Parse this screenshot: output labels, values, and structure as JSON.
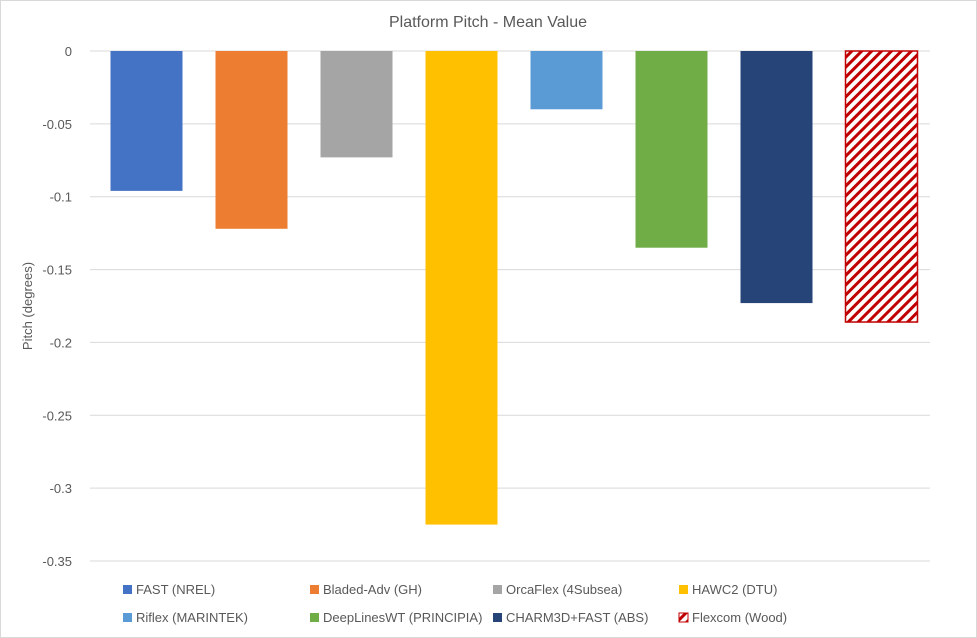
{
  "chart_data": {
    "type": "bar",
    "title": "Platform Pitch - Mean Value",
    "xlabel": "",
    "ylabel": "Pitch (degrees)",
    "ylim": [
      -0.35,
      0
    ],
    "yticks": [
      0,
      -0.05,
      -0.1,
      -0.15,
      -0.2,
      -0.25,
      -0.3,
      -0.35
    ],
    "ytick_labels": [
      "0",
      "-0.05",
      "-0.1",
      "-0.15",
      "-0.2",
      "-0.25",
      "-0.3",
      "-0.35"
    ],
    "grid": true,
    "legend_position": "bottom",
    "series": [
      {
        "name": "FAST (NREL)",
        "value": -0.096,
        "color": "#4472c4",
        "pattern": "solid"
      },
      {
        "name": "Bladed-Adv (GH)",
        "value": -0.122,
        "color": "#ed7d31",
        "pattern": "solid"
      },
      {
        "name": "OrcaFlex (4Subsea)",
        "value": -0.073,
        "color": "#a5a5a5",
        "pattern": "solid"
      },
      {
        "name": "HAWC2 (DTU)",
        "value": -0.325,
        "color": "#ffc000",
        "pattern": "solid"
      },
      {
        "name": "Riflex (MARINTEK)",
        "value": -0.04,
        "color": "#5b9bd5",
        "pattern": "solid"
      },
      {
        "name": "DeepLinesWT (PRINCIPIA)",
        "value": -0.135,
        "color": "#70ad47",
        "pattern": "solid"
      },
      {
        "name": "CHARM3D+FAST (ABS)",
        "value": -0.173,
        "color": "#264478",
        "pattern": "solid"
      },
      {
        "name": "Flexcom (Wood)",
        "value": -0.186,
        "color": "#c00000",
        "pattern": "hatch"
      }
    ]
  }
}
